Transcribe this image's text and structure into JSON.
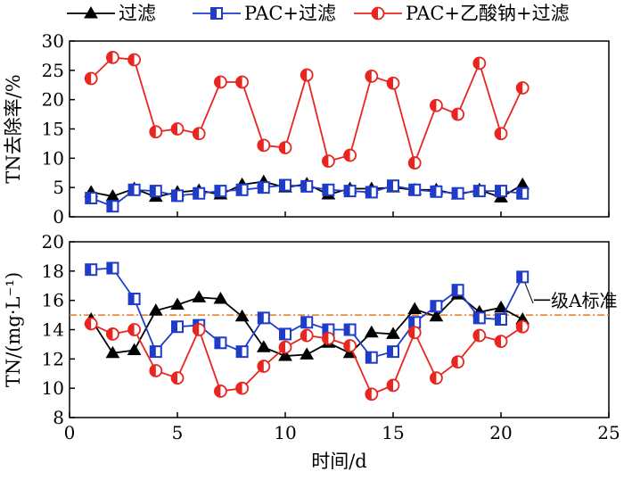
{
  "chart_data": [
    {
      "type": "line",
      "ylabel": "TN去除率/%",
      "xlabel": "",
      "ylim": [
        0,
        30
      ],
      "xlim": [
        0,
        25
      ],
      "yticks": [
        "0",
        "5",
        "10",
        "15",
        "20",
        "25",
        "30"
      ],
      "xticks": [
        "0",
        "5",
        "10",
        "15",
        "20",
        "25"
      ],
      "grid": false,
      "legend": "top",
      "x": [
        1,
        2,
        3,
        4,
        5,
        6,
        7,
        8,
        9,
        10,
        11,
        12,
        13,
        14,
        15,
        16,
        17,
        18,
        19,
        20,
        21
      ],
      "series": [
        {
          "name": "过滤",
          "color": "#000000",
          "marker": "triangle",
          "values": [
            4.2,
            3.5,
            4.8,
            3.4,
            4.2,
            4.5,
            3.8,
            5.5,
            6.0,
            5.0,
            5.6,
            3.8,
            4.8,
            4.8,
            5.0,
            4.6,
            4.6,
            3.8,
            4.6,
            3.3,
            5.5
          ]
        },
        {
          "name": "PAC+过滤",
          "color": "#1e3cc8",
          "marker": "square",
          "values": [
            3.2,
            1.8,
            4.6,
            4.4,
            3.6,
            4.0,
            4.4,
            4.6,
            5.0,
            5.4,
            5.2,
            4.6,
            4.4,
            4.2,
            5.3,
            4.6,
            4.3,
            4.0,
            4.4,
            4.4,
            4.0
          ]
        },
        {
          "name": "PAC+乙酸钠+过滤",
          "color": "#e8251f",
          "marker": "circle",
          "values": [
            23.6,
            27.2,
            26.8,
            14.5,
            15.0,
            14.2,
            23.0,
            23.0,
            12.2,
            11.8,
            24.2,
            9.5,
            10.5,
            24.0,
            22.8,
            9.2,
            19.0,
            17.5,
            26.2,
            14.2,
            22.0
          ]
        }
      ]
    },
    {
      "type": "line",
      "ylabel": "TN/(mg·L⁻¹)",
      "xlabel": "时间/d",
      "ylim": [
        8,
        20
      ],
      "xlim": [
        0,
        25
      ],
      "yticks": [
        "8",
        "10",
        "12",
        "14",
        "16",
        "18",
        "20"
      ],
      "xticks": [
        "0",
        "5",
        "10",
        "15",
        "20",
        "25"
      ],
      "grid": false,
      "x": [
        1,
        2,
        3,
        4,
        5,
        6,
        7,
        8,
        9,
        10,
        11,
        12,
        13,
        14,
        15,
        16,
        17,
        18,
        19,
        20,
        21
      ],
      "series": [
        {
          "name": "过滤",
          "color": "#000000",
          "marker": "triangle",
          "values": [
            14.7,
            12.4,
            12.6,
            15.3,
            15.7,
            16.2,
            16.1,
            14.9,
            12.8,
            12.2,
            12.3,
            13.1,
            12.4,
            13.8,
            13.7,
            15.4,
            14.9,
            16.4,
            15.2,
            15.5,
            14.7
          ]
        },
        {
          "name": "PAC+过滤",
          "color": "#1e3cc8",
          "marker": "square",
          "values": [
            18.1,
            18.2,
            16.1,
            12.5,
            14.2,
            14.3,
            13.1,
            12.5,
            14.8,
            13.7,
            14.5,
            14.0,
            14.0,
            12.1,
            12.5,
            14.5,
            15.6,
            16.7,
            14.8,
            14.7,
            17.6
          ]
        },
        {
          "name": "PAC+乙酸钠+过滤",
          "color": "#e8251f",
          "marker": "circle",
          "values": [
            14.4,
            13.7,
            14.0,
            11.2,
            10.7,
            14.0,
            9.8,
            10.0,
            11.5,
            12.8,
            13.6,
            13.4,
            12.9,
            9.6,
            10.2,
            13.8,
            10.7,
            11.8,
            13.6,
            13.2,
            14.2
          ]
        }
      ],
      "reference_line": {
        "label": "一级A标准",
        "value": 15,
        "color": "#e07a20"
      }
    }
  ]
}
